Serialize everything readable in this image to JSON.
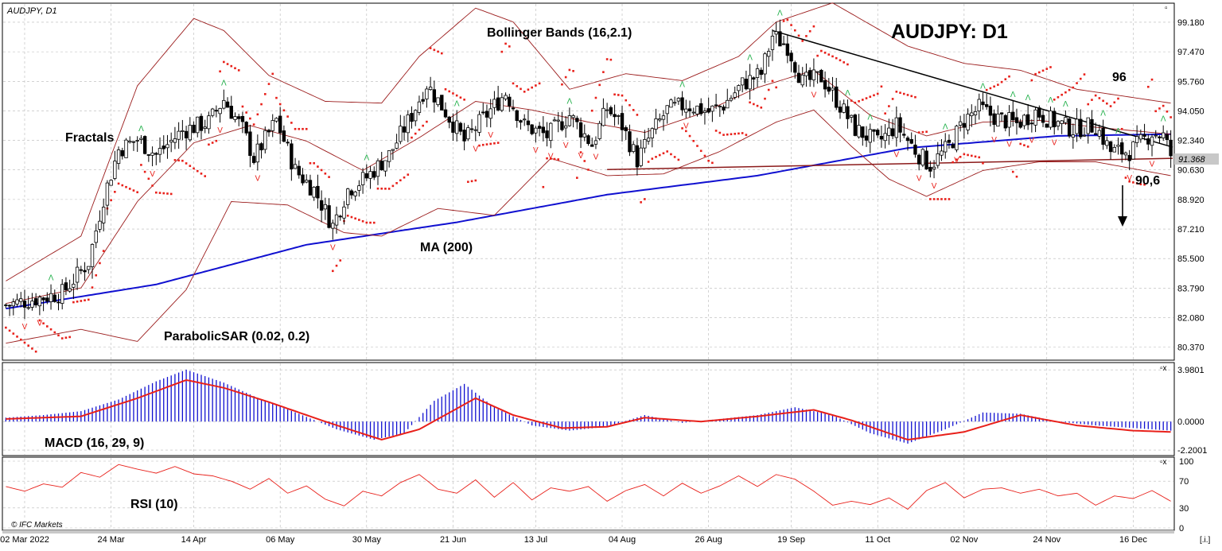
{
  "chart_data": {
    "type": "candlestick",
    "symbol_label": "AUDJPY, D1",
    "title": "AUDJPY: D1",
    "watermark": "© IFC Markets",
    "corner_controls": [
      "▫",
      "▫x",
      "▫x",
      "[.i.]"
    ],
    "x_ticks": [
      "02 Mar 2022",
      "24 Mar",
      "14 Apr",
      "06 May",
      "30 May",
      "21 Jun",
      "13 Jul",
      "04 Aug",
      "26 Aug",
      "19 Sep",
      "11 Oct",
      "02 Nov",
      "24 Nov",
      "16 Dec"
    ],
    "price_panel": {
      "ylim": [
        79.8,
        100.1
      ],
      "y_ticks": [
        "99.180",
        "97.470",
        "95.760",
        "94.050",
        "92.340",
        "90.630",
        "88.920",
        "87.210",
        "85.500",
        "83.790",
        "82.080",
        "80.370"
      ],
      "current_price": "91.368",
      "annotations": [
        "Bollinger Bands (16,2.1)",
        "Fractals",
        "MA (200)",
        "ParabolicSAR (0.02, 0.2)",
        "96",
        "90,6"
      ],
      "levels": {
        "resistance": 96,
        "support": 90.6,
        "last": 91.368
      },
      "price_path": [
        [
          0,
          82.8
        ],
        [
          15,
          83.5
        ],
        [
          22,
          85.3
        ],
        [
          26,
          89.0
        ],
        [
          30,
          91.8
        ],
        [
          35,
          92.4
        ],
        [
          40,
          91.5
        ],
        [
          47,
          92.9
        ],
        [
          54,
          93.4
        ],
        [
          58,
          94.7
        ],
        [
          63,
          93.0
        ],
        [
          66,
          91.3
        ],
        [
          72,
          93.5
        ],
        [
          77,
          90.6
        ],
        [
          82,
          89.5
        ],
        [
          87,
          87.4
        ],
        [
          91,
          89.5
        ],
        [
          96,
          90.2
        ],
        [
          102,
          91.5
        ],
        [
          108,
          93.8
        ],
        [
          112,
          95.6
        ],
        [
          117,
          94.0
        ],
        [
          122,
          92.3
        ],
        [
          127,
          93.6
        ],
        [
          133,
          95.1
        ],
        [
          138,
          93.2
        ],
        [
          144,
          92.6
        ],
        [
          150,
          93.8
        ],
        [
          156,
          92.1
        ],
        [
          160,
          94.2
        ],
        [
          164,
          93.2
        ],
        [
          168,
          91.2
        ],
        [
          172,
          92.8
        ],
        [
          176,
          94.1
        ],
        [
          181,
          94.4
        ],
        [
          187,
          94.0
        ],
        [
          191,
          94.4
        ],
        [
          196,
          95.6
        ],
        [
          201,
          96.2
        ],
        [
          204,
          98.4
        ],
        [
          208,
          97.8
        ],
        [
          212,
          95.7
        ],
        [
          217,
          96.0
        ],
        [
          221,
          94.7
        ],
        [
          226,
          93.0
        ],
        [
          232,
          92.2
        ],
        [
          237,
          93.2
        ],
        [
          243,
          91.5
        ],
        [
          246,
          90.9
        ],
        [
          251,
          92.0
        ],
        [
          255,
          93.5
        ],
        [
          259,
          94.2
        ],
        [
          264,
          93.6
        ],
        [
          269,
          93.3
        ],
        [
          274,
          94.0
        ],
        [
          279,
          93.4
        ],
        [
          284,
          93.0
        ],
        [
          290,
          93.2
        ],
        [
          294,
          91.7
        ],
        [
          299,
          91.7
        ],
        [
          302,
          92.2
        ],
        [
          305,
          92.8
        ],
        [
          308,
          92.6
        ],
        [
          310,
          91.5
        ]
      ],
      "series": [
        {
          "name": "MA (200)",
          "color": "#1010d0",
          "points": [
            [
              0,
              82.6
            ],
            [
              40,
              84.0
            ],
            [
              80,
              86.3
            ],
            [
              120,
              87.6
            ],
            [
              160,
              89.2
            ],
            [
              200,
              90.3
            ],
            [
              240,
              91.9
            ],
            [
              280,
              92.6
            ],
            [
              310,
              92.7
            ]
          ]
        },
        {
          "name": "Bollinger Bands (16,2.1)",
          "color": "#9b1c1c",
          "role": "upper",
          "points": [
            [
              0,
              84.2
            ],
            [
              20,
              86.8
            ],
            [
              35,
              95.5
            ],
            [
              50,
              99.4
            ],
            [
              58,
              98.7
            ],
            [
              70,
              96.1
            ],
            [
              85,
              94.6
            ],
            [
              100,
              94.5
            ],
            [
              110,
              97.2
            ],
            [
              125,
              100.0
            ],
            [
              135,
              99.2
            ],
            [
              150,
              95.3
            ],
            [
              165,
              96.2
            ],
            [
              180,
              95.8
            ],
            [
              195,
              97.2
            ],
            [
              205,
              99.2
            ],
            [
              220,
              100.3
            ],
            [
              240,
              97.8
            ],
            [
              255,
              96.8
            ],
            [
              270,
              96.4
            ],
            [
              285,
              95.3
            ],
            [
              310,
              94.5
            ]
          ]
        },
        {
          "name": "Bollinger Bands (16,2.1)",
          "color": "#9b1c1c",
          "role": "middle",
          "points": [
            [
              0,
              82.9
            ],
            [
              20,
              83.8
            ],
            [
              35,
              88.8
            ],
            [
              50,
              92.2
            ],
            [
              65,
              93.2
            ],
            [
              80,
              92.3
            ],
            [
              95,
              90.6
            ],
            [
              110,
              92.5
            ],
            [
              125,
              94.6
            ],
            [
              140,
              94.1
            ],
            [
              155,
              93.4
            ],
            [
              170,
              92.8
            ],
            [
              185,
              93.9
            ],
            [
              200,
              95.4
            ],
            [
              215,
              96.4
            ],
            [
              230,
              93.8
            ],
            [
              245,
              92.6
            ],
            [
              260,
              93.4
            ],
            [
              275,
              93.5
            ],
            [
              290,
              93.1
            ],
            [
              310,
              92.7
            ]
          ]
        },
        {
          "name": "Bollinger Bands (16,2.1)",
          "color": "#9b1c1c",
          "role": "lower",
          "points": [
            [
              0,
              80.6
            ],
            [
              20,
              81.4
            ],
            [
              35,
              80.7
            ],
            [
              48,
              83.7
            ],
            [
              60,
              88.8
            ],
            [
              75,
              88.6
            ],
            [
              90,
              87.0
            ],
            [
              100,
              86.8
            ],
            [
              115,
              88.4
            ],
            [
              130,
              88.0
            ],
            [
              145,
              91.3
            ],
            [
              160,
              90.3
            ],
            [
              175,
              90.4
            ],
            [
              190,
              91.7
            ],
            [
              205,
              93.4
            ],
            [
              215,
              94.1
            ],
            [
              225,
              92.0
            ],
            [
              235,
              90.1
            ],
            [
              245,
              89.1
            ],
            [
              260,
              90.6
            ],
            [
              275,
              91.1
            ],
            [
              290,
              91.1
            ],
            [
              310,
              90.3
            ]
          ]
        }
      ]
    },
    "macd_panel": {
      "label": "MACD (16, 29, 9)",
      "ylim": [
        -2.5,
        4.3
      ],
      "y_ticks": [
        "3.9801",
        "0.0000",
        "-2.2001"
      ],
      "histogram": [
        [
          0,
          0.3
        ],
        [
          10,
          0.5
        ],
        [
          20,
          0.8
        ],
        [
          30,
          1.7
        ],
        [
          40,
          3.1
        ],
        [
          48,
          4.0
        ],
        [
          58,
          3.0
        ],
        [
          68,
          1.7
        ],
        [
          78,
          0.6
        ],
        [
          88,
          -0.6
        ],
        [
          98,
          -1.4
        ],
        [
          106,
          -0.9
        ],
        [
          114,
          1.6
        ],
        [
          122,
          2.9
        ],
        [
          130,
          1.1
        ],
        [
          140,
          -0.3
        ],
        [
          150,
          -0.7
        ],
        [
          160,
          -0.4
        ],
        [
          170,
          0.5
        ],
        [
          180,
          -0.1
        ],
        [
          190,
          0.2
        ],
        [
          200,
          0.5
        ],
        [
          210,
          1.1
        ],
        [
          220,
          0.5
        ],
        [
          230,
          -0.9
        ],
        [
          240,
          -1.7
        ],
        [
          250,
          -0.6
        ],
        [
          260,
          0.7
        ],
        [
          270,
          0.6
        ],
        [
          280,
          0.0
        ],
        [
          290,
          -0.3
        ],
        [
          300,
          -0.5
        ],
        [
          310,
          -0.7
        ]
      ],
      "signal": [
        [
          0,
          0.2
        ],
        [
          20,
          0.4
        ],
        [
          35,
          1.8
        ],
        [
          48,
          3.2
        ],
        [
          58,
          2.6
        ],
        [
          70,
          1.5
        ],
        [
          85,
          0.0
        ],
        [
          100,
          -1.4
        ],
        [
          110,
          -0.6
        ],
        [
          125,
          1.8
        ],
        [
          135,
          0.5
        ],
        [
          148,
          -0.5
        ],
        [
          160,
          -0.4
        ],
        [
          170,
          0.3
        ],
        [
          185,
          0.0
        ],
        [
          200,
          0.4
        ],
        [
          215,
          0.9
        ],
        [
          225,
          0.1
        ],
        [
          240,
          -1.4
        ],
        [
          255,
          -0.8
        ],
        [
          270,
          0.5
        ],
        [
          285,
          -0.3
        ],
        [
          300,
          -0.7
        ],
        [
          310,
          -0.8
        ]
      ]
    },
    "rsi_panel": {
      "label": "RSI (10)",
      "ylim": [
        0,
        100
      ],
      "y_ticks": [
        "100",
        "70",
        "30",
        "0"
      ],
      "rsi": [
        [
          0,
          62
        ],
        [
          5,
          55
        ],
        [
          10,
          66
        ],
        [
          15,
          61
        ],
        [
          20,
          83
        ],
        [
          25,
          76
        ],
        [
          30,
          95
        ],
        [
          35,
          88
        ],
        [
          40,
          82
        ],
        [
          45,
          92
        ],
        [
          50,
          81
        ],
        [
          55,
          78
        ],
        [
          60,
          70
        ],
        [
          65,
          58
        ],
        [
          70,
          74
        ],
        [
          75,
          52
        ],
        [
          80,
          63
        ],
        [
          85,
          43
        ],
        [
          90,
          33
        ],
        [
          95,
          55
        ],
        [
          100,
          48
        ],
        [
          105,
          68
        ],
        [
          110,
          80
        ],
        [
          115,
          58
        ],
        [
          120,
          52
        ],
        [
          125,
          72
        ],
        [
          130,
          46
        ],
        [
          135,
          68
        ],
        [
          140,
          42
        ],
        [
          145,
          60
        ],
        [
          150,
          55
        ],
        [
          155,
          62
        ],
        [
          160,
          40
        ],
        [
          165,
          56
        ],
        [
          170,
          65
        ],
        [
          175,
          48
        ],
        [
          180,
          67
        ],
        [
          185,
          52
        ],
        [
          190,
          63
        ],
        [
          195,
          78
        ],
        [
          200,
          62
        ],
        [
          205,
          80
        ],
        [
          210,
          73
        ],
        [
          215,
          55
        ],
        [
          220,
          34
        ],
        [
          225,
          40
        ],
        [
          230,
          35
        ],
        [
          235,
          45
        ],
        [
          240,
          28
        ],
        [
          245,
          56
        ],
        [
          250,
          68
        ],
        [
          255,
          45
        ],
        [
          260,
          58
        ],
        [
          265,
          60
        ],
        [
          270,
          52
        ],
        [
          275,
          58
        ],
        [
          280,
          48
        ],
        [
          285,
          52
        ],
        [
          290,
          34
        ],
        [
          295,
          48
        ],
        [
          300,
          44
        ],
        [
          305,
          56
        ],
        [
          310,
          40
        ]
      ]
    }
  }
}
